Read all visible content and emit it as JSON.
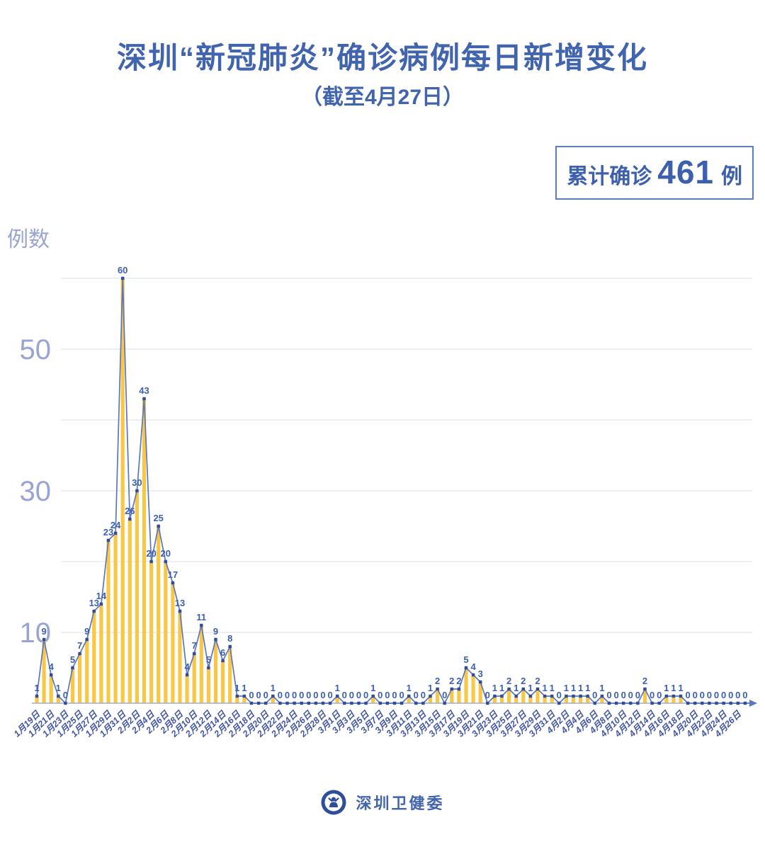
{
  "header": {
    "title": "深圳“新冠肺炎”确诊病例每日新增变化",
    "subtitle": "（截至4月27日）",
    "badge": {
      "prefix": "累计确诊",
      "value": "461",
      "suffix": "例"
    }
  },
  "footer": {
    "brand": "深圳卫健委",
    "logo": "shenzhen-health-commission-emblem"
  },
  "colors": {
    "primary_blue": "#4164ae",
    "value_label": "#3c5fae",
    "date_label": "#4156a3",
    "axis_tick": "#99a4d4",
    "line": "#5b77c1",
    "dot": "#2e4d9b",
    "bar": "#f9c746",
    "grid": "#e3e5ee",
    "baseline": "#a8adc2"
  },
  "chart_data": {
    "type": "bar",
    "title": "深圳“新冠肺炎”确诊病例每日新增变化",
    "subtitle": "（截至4月27日）",
    "ylabel": "例数",
    "ylim": [
      0,
      60
    ],
    "y_ticks_labeled": [
      10,
      30,
      50
    ],
    "gridlines": [
      10,
      20,
      30,
      40,
      50,
      60
    ],
    "legend": "none",
    "total_label": "累计确诊 461 例",
    "x_label_every": 2,
    "x_tick_labels": [
      "1月19日",
      "1月21日",
      "1月23日",
      "1月25日",
      "1月27日",
      "1月29日",
      "1月31日",
      "2月2日",
      "2月4日",
      "2月6日",
      "2月8日",
      "2月10日",
      "2月12日",
      "2月14日",
      "2月16日",
      "2月18日",
      "2月20日",
      "2月22日",
      "2月24日",
      "2月26日",
      "2月28日",
      "3月1日",
      "3月3日",
      "3月5日",
      "3月7日",
      "3月9日",
      "3月11日",
      "3月13日",
      "3月15日",
      "3月17日",
      "3月19日",
      "3月21日",
      "3月23日",
      "3月25日",
      "3月27日",
      "3月29日",
      "3月31日",
      "4月2日",
      "4月4日",
      "4月6日",
      "4月8日",
      "4月10日",
      "4月12日",
      "4月14日",
      "4月16日",
      "4月18日",
      "4月20日",
      "4月22日",
      "4月24日",
      "4月26日"
    ],
    "values": [
      1,
      9,
      4,
      1,
      0,
      5,
      7,
      9,
      13,
      14,
      23,
      24,
      60,
      26,
      30,
      43,
      20,
      25,
      20,
      17,
      13,
      4,
      7,
      11,
      5,
      9,
      6,
      8,
      1,
      1,
      0,
      0,
      0,
      1,
      0,
      0,
      0,
      0,
      0,
      0,
      0,
      0,
      1,
      0,
      0,
      0,
      0,
      1,
      0,
      0,
      0,
      0,
      1,
      0,
      0,
      1,
      2,
      0,
      2,
      2,
      5,
      4,
      3,
      0,
      1,
      1,
      2,
      1,
      2,
      1,
      2,
      1,
      1,
      0,
      1,
      1,
      1,
      1,
      0,
      1,
      0,
      0,
      0,
      0,
      0,
      2,
      0,
      0,
      1,
      1,
      1,
      0,
      0,
      0,
      0,
      0,
      0,
      0,
      0,
      0
    ]
  }
}
